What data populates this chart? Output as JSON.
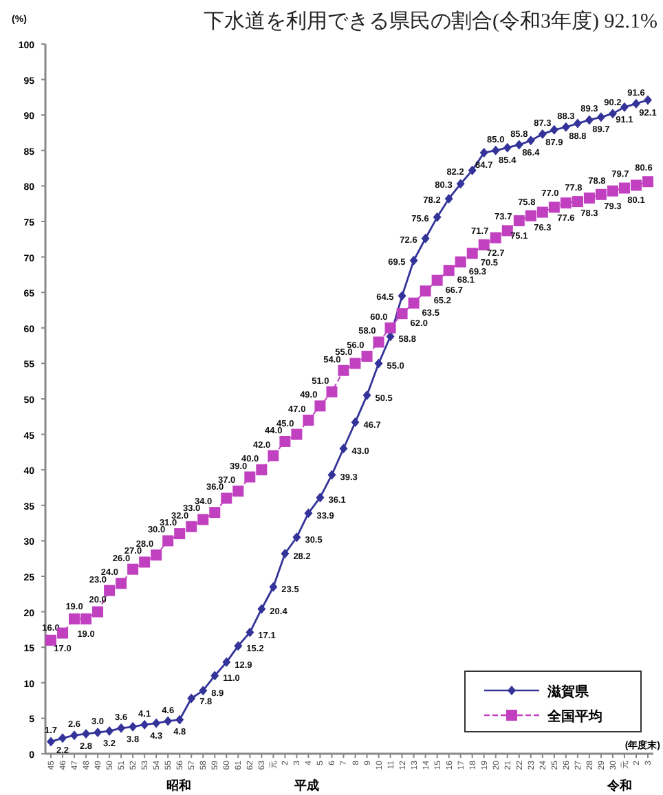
{
  "chart_data": {
    "type": "line",
    "title": "下水道を利用できる県民の割合(令和3年度) 92.1%",
    "ylabel": "(%)",
    "xlabel": "(年度末)",
    "categories": [
      "45",
      "46",
      "47",
      "48",
      "49",
      "50",
      "51",
      "52",
      "53",
      "54",
      "55",
      "56",
      "57",
      "58",
      "59",
      "60",
      "61",
      "62",
      "63",
      "元",
      "2",
      "3",
      "4",
      "5",
      "6",
      "7",
      "8",
      "9",
      "10",
      "11",
      "12",
      "13",
      "14",
      "15",
      "16",
      "17",
      "18",
      "19",
      "20",
      "21",
      "22",
      "23",
      "24",
      "25",
      "26",
      "27",
      "28",
      "29",
      "30",
      "元",
      "2",
      "3"
    ],
    "series": [
      {
        "name": "滋賀県",
        "color": "#333399",
        "marker": "diamond",
        "line_style": "solid",
        "values": [
          1.7,
          2.2,
          2.6,
          2.8,
          3.0,
          3.2,
          3.6,
          3.8,
          4.1,
          4.3,
          4.6,
          4.8,
          7.8,
          8.9,
          11.0,
          12.9,
          15.2,
          17.1,
          20.4,
          23.5,
          28.2,
          30.5,
          33.9,
          36.1,
          39.3,
          43.0,
          46.7,
          50.5,
          55.0,
          58.8,
          64.5,
          69.5,
          72.6,
          75.6,
          78.2,
          80.3,
          82.2,
          84.7,
          85.0,
          85.4,
          85.8,
          86.4,
          87.3,
          87.9,
          88.3,
          88.8,
          89.3,
          89.7,
          90.2,
          91.1,
          91.6,
          92.1
        ],
        "value_labels": [
          "1.7",
          "2.2",
          "2.6",
          "2.8",
          "3.0",
          "3.2",
          "3.6",
          "3.8",
          "4.1",
          "4.3",
          "4.6",
          "4.8",
          "7.8",
          "8.9",
          "11.0",
          "12.9",
          "15.2",
          "17.1",
          "20.4",
          "23.5",
          "28.2",
          "30.5",
          "33.9",
          "36.1",
          "39.3",
          "43.0",
          "46.7",
          "50.5",
          "55.0",
          "58.8",
          "64.5",
          "69.5",
          "72.6",
          "75.6",
          "78.2",
          "80.3",
          "82.2",
          "84.7",
          "85.0",
          "85.4",
          "85.8",
          "86.4",
          "87.3",
          "87.9",
          "88.3",
          "88.8",
          "89.3",
          "89.7",
          "90.2",
          "91.1",
          "91.6",
          "92.1"
        ]
      },
      {
        "name": "全国平均",
        "color": "#c040c0",
        "marker": "square",
        "line_style": "dashed",
        "values": [
          16.0,
          17.0,
          19.0,
          19.0,
          20.0,
          23.0,
          24.0,
          26.0,
          27.0,
          28.0,
          30.0,
          31.0,
          32.0,
          33.0,
          34.0,
          36.0,
          37.0,
          39.0,
          40.0,
          42.0,
          44.0,
          45.0,
          47.0,
          49.0,
          51.0,
          54.0,
          55.0,
          56.0,
          58.0,
          60.0,
          62.0,
          63.5,
          65.2,
          66.7,
          68.1,
          69.3,
          70.5,
          71.7,
          72.7,
          73.7,
          75.1,
          75.8,
          76.3,
          77.0,
          77.6,
          77.8,
          78.3,
          78.8,
          79.3,
          79.7,
          80.1,
          80.6
        ],
        "value_labels": [
          "16.0",
          "17.0",
          "19.0",
          "19.0",
          "20.0",
          "23.0",
          "24.0",
          "26.0",
          "27.0",
          "28.0",
          "30.0",
          "31.0",
          "32.0",
          "33.0",
          "34.0",
          "36.0",
          "37.0",
          "39.0",
          "40.0",
          "42.0",
          "44.0",
          "45.0",
          "47.0",
          "49.0",
          "51.0",
          "54.0",
          "55.0",
          "56.0",
          "58.0",
          "60.0",
          "62.0",
          "63.5",
          "65.2",
          "66.7",
          "68.1",
          "69.3",
          "70.5",
          "71.7",
          "72.7",
          "73.7",
          "75.1",
          "75.8",
          "76.3",
          "77.0",
          "77.6",
          "77.8",
          "78.3",
          "78.8",
          "79.3",
          "79.7",
          "80.1",
          "80.6"
        ]
      }
    ],
    "ylim": [
      0,
      100
    ],
    "yticks": [
      0,
      5,
      10,
      15,
      20,
      25,
      30,
      35,
      40,
      45,
      50,
      55,
      60,
      65,
      70,
      75,
      80,
      85,
      90,
      95,
      100
    ],
    "legend": "bottom right",
    "annotations": [
      "昭和",
      "平成",
      "令和"
    ]
  }
}
